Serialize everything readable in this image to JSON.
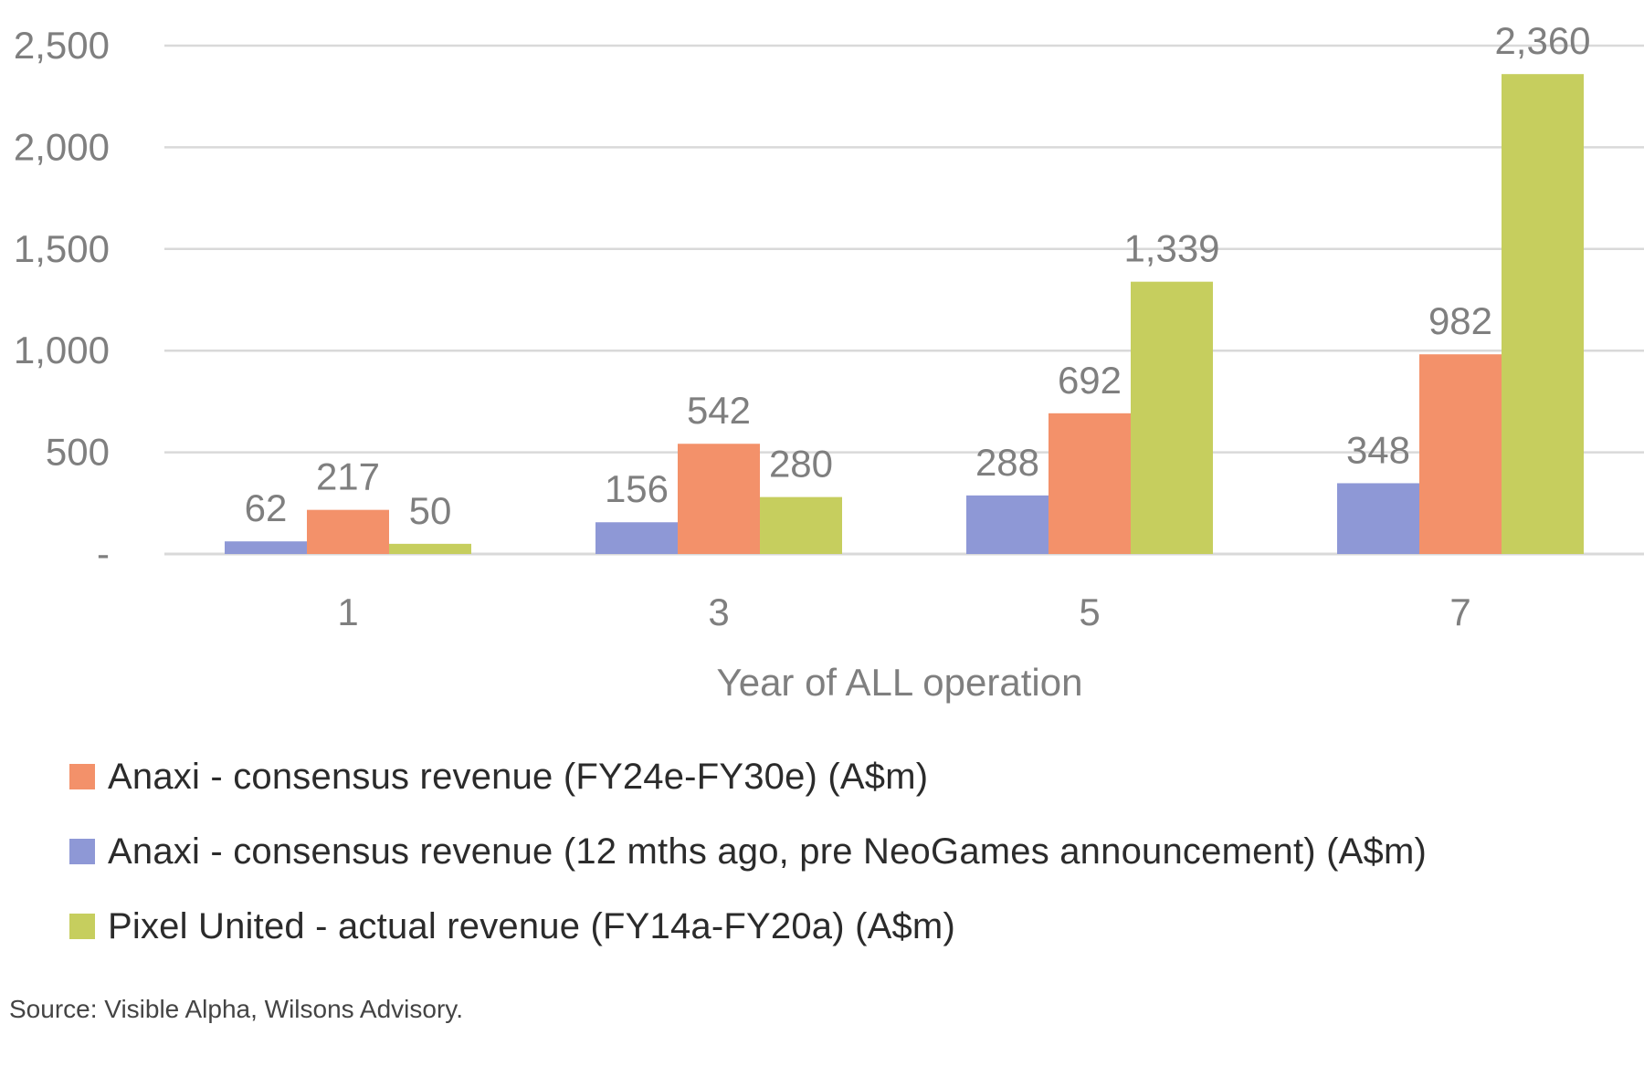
{
  "chart_data": {
    "type": "bar",
    "title": "",
    "xlabel": "Year of ALL operation",
    "ylabel": "",
    "categories": [
      "1",
      "3",
      "5",
      "7"
    ],
    "ylim": [
      0,
      2500
    ],
    "yticks": [
      0,
      500,
      1000,
      1500,
      2000,
      2500
    ],
    "ytick_labels": [
      "-",
      "500",
      "1,000",
      "1,500",
      "2,000",
      "2,500"
    ],
    "grid": true,
    "legend_position": "bottom",
    "series": [
      {
        "name": "Anaxi - consensus revenue (12 mths ago, pre NeoGames announcement) (A$m)",
        "color": "#8e98d6",
        "values": [
          62,
          156,
          288,
          348
        ],
        "labels": [
          "62",
          "156",
          "288",
          "348"
        ]
      },
      {
        "name": "Anaxi - consensus revenue (FY24e-FY30e) (A$m)",
        "color": "#f3916a",
        "values": [
          217,
          542,
          692,
          982
        ],
        "labels": [
          "217",
          "542",
          "692",
          "982"
        ]
      },
      {
        "name": "Pixel United - actual revenue (FY14a-FY20a) (A$m)",
        "color": "#c6ce5e",
        "values": [
          50,
          280,
          1339,
          2360
        ],
        "labels": [
          "50",
          "280",
          "1,339",
          "2,360"
        ]
      }
    ],
    "legend_order": [
      1,
      0,
      2
    ]
  },
  "colors": {
    "grid": "#d9d9d9",
    "axis_text": "#7f7f7f",
    "label_text": "#7f7f7f"
  },
  "source": "Source: Visible Alpha, Wilsons Advisory."
}
